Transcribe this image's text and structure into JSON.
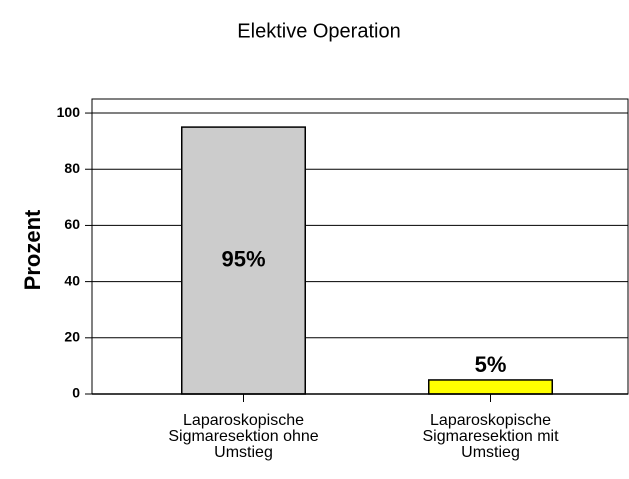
{
  "chart_data": {
    "type": "bar",
    "title": "Elektive Operation",
    "ylabel": "Prozent",
    "categories": [
      "Laparoskopische Sigmaresektion ohne Umstieg",
      "Laparoskopische Sigmaresektion mit Umstieg"
    ],
    "values": [
      95,
      5
    ],
    "value_labels": [
      "95%",
      "5%"
    ],
    "colors": [
      "#cccccc",
      "#ffff00"
    ],
    "ylim": [
      0,
      105
    ],
    "yticks": [
      0,
      20,
      40,
      60,
      80,
      100
    ],
    "grid": true
  }
}
